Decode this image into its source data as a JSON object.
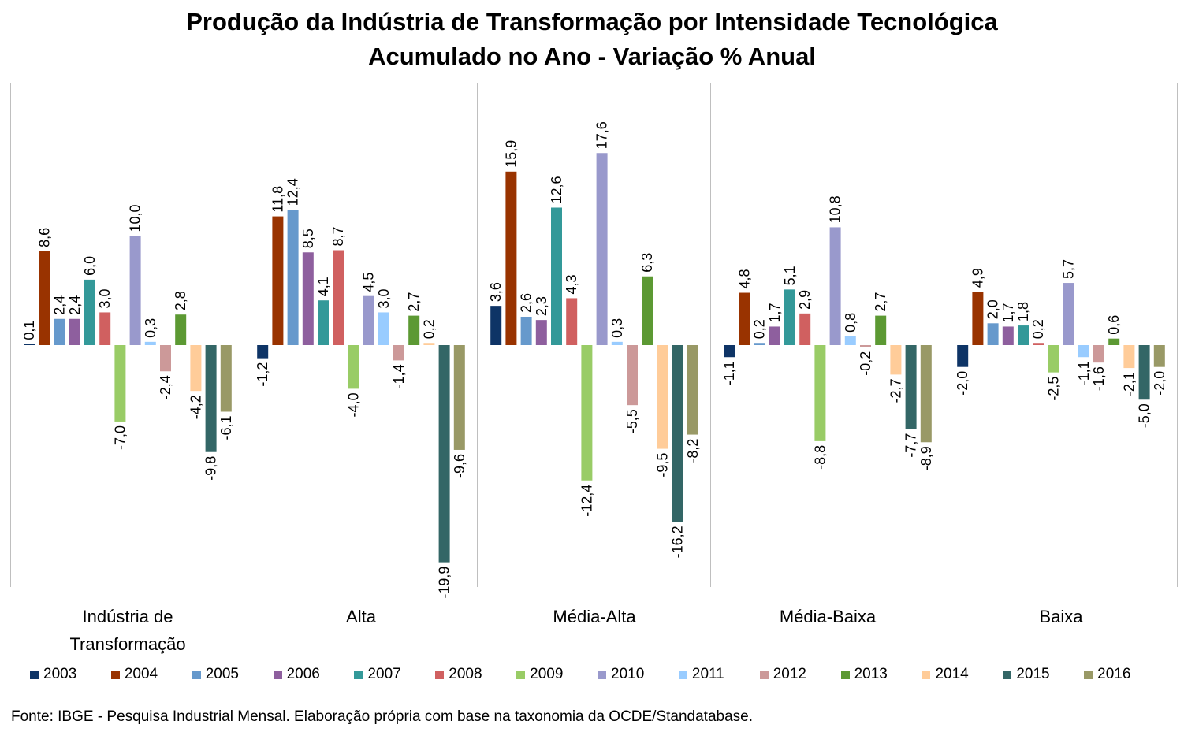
{
  "title": "Produção da Indústria de Transformação por Intensidade Tecnológica",
  "subtitle": "Acumulado no Ano - Variação % Anual",
  "source": "Fonte:  IBGE - Pesquisa Industrial Mensal. Elaboração própria com base na taxonomia da OCDE/Standatabase.",
  "chart_data": {
    "type": "bar",
    "categories": [
      [
        "Indústria de",
        "Transformação"
      ],
      [
        "Alta"
      ],
      [
        "Média-Alta"
      ],
      [
        "Média-Baixa"
      ],
      [
        "Baixa"
      ]
    ],
    "series": [
      {
        "name": "2003",
        "color": "#0e3466",
        "values": [
          0.1,
          -1.2,
          3.6,
          -1.1,
          -2.0
        ]
      },
      {
        "name": "2004",
        "color": "#993300",
        "values": [
          8.6,
          11.8,
          15.9,
          4.8,
          4.9
        ]
      },
      {
        "name": "2005",
        "color": "#6699cc",
        "values": [
          2.4,
          12.4,
          2.6,
          0.2,
          2.0
        ]
      },
      {
        "name": "2006",
        "color": "#8e5f9e",
        "values": [
          2.4,
          8.5,
          2.3,
          1.7,
          1.7
        ]
      },
      {
        "name": "2007",
        "color": "#339999",
        "values": [
          6.0,
          4.1,
          12.6,
          5.1,
          1.8
        ]
      },
      {
        "name": "2008",
        "color": "#d06060",
        "values": [
          3.0,
          8.7,
          4.3,
          2.9,
          0.2
        ]
      },
      {
        "name": "2009",
        "color": "#99cc66",
        "values": [
          -7.0,
          -4.0,
          -12.4,
          -8.8,
          -2.5
        ]
      },
      {
        "name": "2010",
        "color": "#9999cc",
        "values": [
          10.0,
          4.5,
          17.6,
          10.8,
          5.7
        ]
      },
      {
        "name": "2011",
        "color": "#99ccff",
        "values": [
          0.3,
          3.0,
          0.3,
          0.8,
          -1.1
        ]
      },
      {
        "name": "2012",
        "color": "#cc9999",
        "values": [
          -2.4,
          -1.4,
          -5.5,
          -0.2,
          -1.6
        ]
      },
      {
        "name": "2013",
        "color": "#5c9933",
        "values": [
          2.8,
          2.7,
          6.3,
          2.7,
          0.6
        ]
      },
      {
        "name": "2014",
        "color": "#ffcc99",
        "values": [
          -4.2,
          0.2,
          -9.5,
          -2.7,
          -2.1
        ]
      },
      {
        "name": "2015",
        "color": "#336666",
        "values": [
          -9.8,
          -19.9,
          -16.2,
          -7.7,
          -5.0
        ]
      },
      {
        "name": "2016",
        "color": "#999966",
        "values": [
          -6.1,
          -9.6,
          -8.2,
          -8.9,
          -2.0
        ]
      }
    ],
    "labels": [
      [
        "0,1",
        "-1,2",
        "3,6",
        "-1,1",
        "-2,0"
      ],
      [
        "8,6",
        "11,8",
        "15,9",
        "4,8",
        "4,9"
      ],
      [
        "2,4",
        "12,4",
        "2,6",
        "0,2",
        "2,0"
      ],
      [
        "2,4",
        "8,5",
        "2,3",
        "1,7",
        "1,7"
      ],
      [
        "6,0",
        "4,1",
        "12,6",
        "5,1",
        "1,8"
      ],
      [
        "3,0",
        "8,7",
        "4,3",
        "2,9",
        "0,2"
      ],
      [
        "-7,0",
        "-4,0",
        "-12,4",
        "-8,8",
        "-2,5"
      ],
      [
        "10,0",
        "4,5",
        "17,6",
        "10,8",
        "5,7"
      ],
      [
        "0,3",
        "3,0",
        "0,3",
        "0,8",
        "-1,1"
      ],
      [
        "-2,4",
        "-1,4",
        "-5,5",
        "-0,2",
        "-1,6"
      ],
      [
        "2,8",
        "2,7",
        "6,3",
        "2,7",
        "0,6"
      ],
      [
        "-4,2",
        "0,2",
        "-9,5",
        "-2,7",
        "-2,1"
      ],
      [
        "-9,8",
        "-19,9",
        "-16,2",
        "-7,7",
        "-5,0"
      ],
      [
        "-6,1",
        "-9,6",
        "-8,2",
        "-8,9",
        "-2,0"
      ]
    ],
    "ylim": [
      -22,
      24
    ],
    "grid": false,
    "legend_position": "bottom",
    "axis_line_color": "#bfbfbf"
  }
}
